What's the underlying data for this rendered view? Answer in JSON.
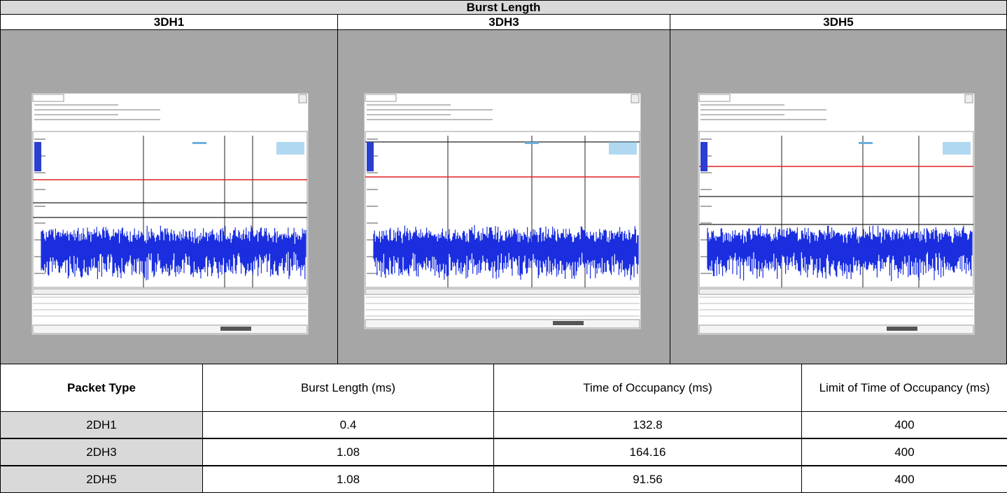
{
  "header": {
    "title": "Burst Length",
    "columns": [
      "3DH1",
      "3DH3",
      "3DH5"
    ]
  },
  "table": {
    "header": [
      "Packet Type",
      "Burst Length (ms)",
      "Time of Occupancy (ms)",
      "Limit of Time of Occupancy (ms)"
    ],
    "rows": [
      [
        "2DH1",
        0.4,
        132.8,
        400
      ],
      [
        "2DH3",
        1.08,
        164.16,
        400
      ],
      [
        "2DH5",
        1.08,
        91.56,
        400
      ]
    ]
  }
}
